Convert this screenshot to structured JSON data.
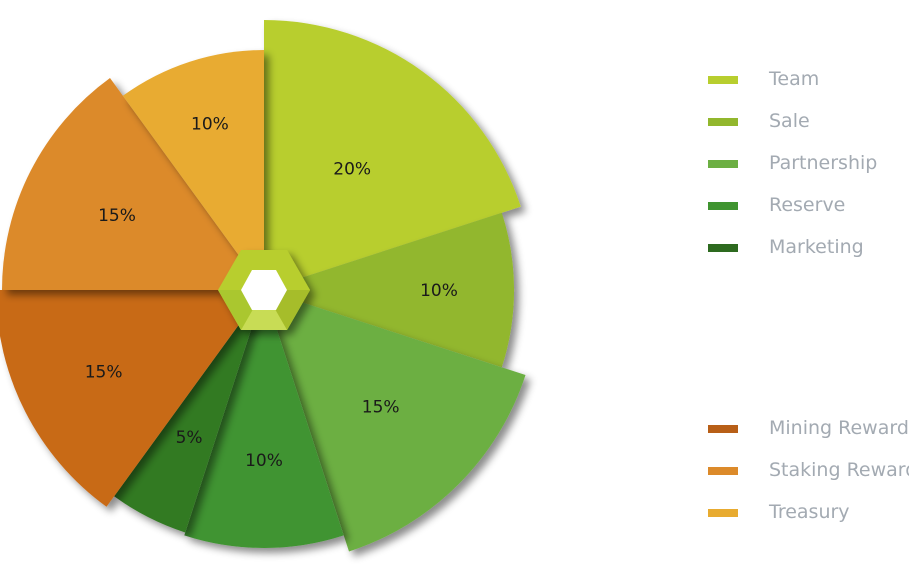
{
  "chart_data": {
    "type": "pie",
    "slices": [
      {
        "name": "Team",
        "value": 20,
        "label": "20%",
        "color": "#b8ce2e"
      },
      {
        "name": "Sale",
        "value": 10,
        "label": "10%",
        "color": "#92b72d"
      },
      {
        "name": "Partnership",
        "value": 15,
        "label": "15%",
        "color": "#6caf43"
      },
      {
        "name": "Reserve",
        "value": 10,
        "label": "10%",
        "color": "#3f9430"
      },
      {
        "name": "Marketing",
        "value": 5,
        "label": "5%",
        "color": "#337a24"
      },
      {
        "name": "Mining Reward",
        "value": 15,
        "label": "15%",
        "color": "#c86a19"
      },
      {
        "name": "Staking Reward",
        "value": 15,
        "label": "15%",
        "color": "#dc8a2a"
      },
      {
        "name": "Treasury",
        "value": 10,
        "label": "10%",
        "color": "#e8ab30"
      }
    ],
    "center_icon": "hexagon-icon"
  },
  "legend": {
    "group1": [
      {
        "label": "Team",
        "color": "#b8ce2e"
      },
      {
        "label": "Sale",
        "color": "#92b72d"
      },
      {
        "label": "Partnership",
        "color": "#6caf43"
      },
      {
        "label": "Reserve",
        "color": "#3f9430"
      },
      {
        "label": "Marketing",
        "color": "#2d6a1f"
      }
    ],
    "group2": [
      {
        "label": "Mining Reward",
        "color": "#b85f17"
      },
      {
        "label": "Staking Reward",
        "color": "#dc8a2a"
      },
      {
        "label": "Treasury",
        "color": "#e8ab30"
      }
    ]
  }
}
